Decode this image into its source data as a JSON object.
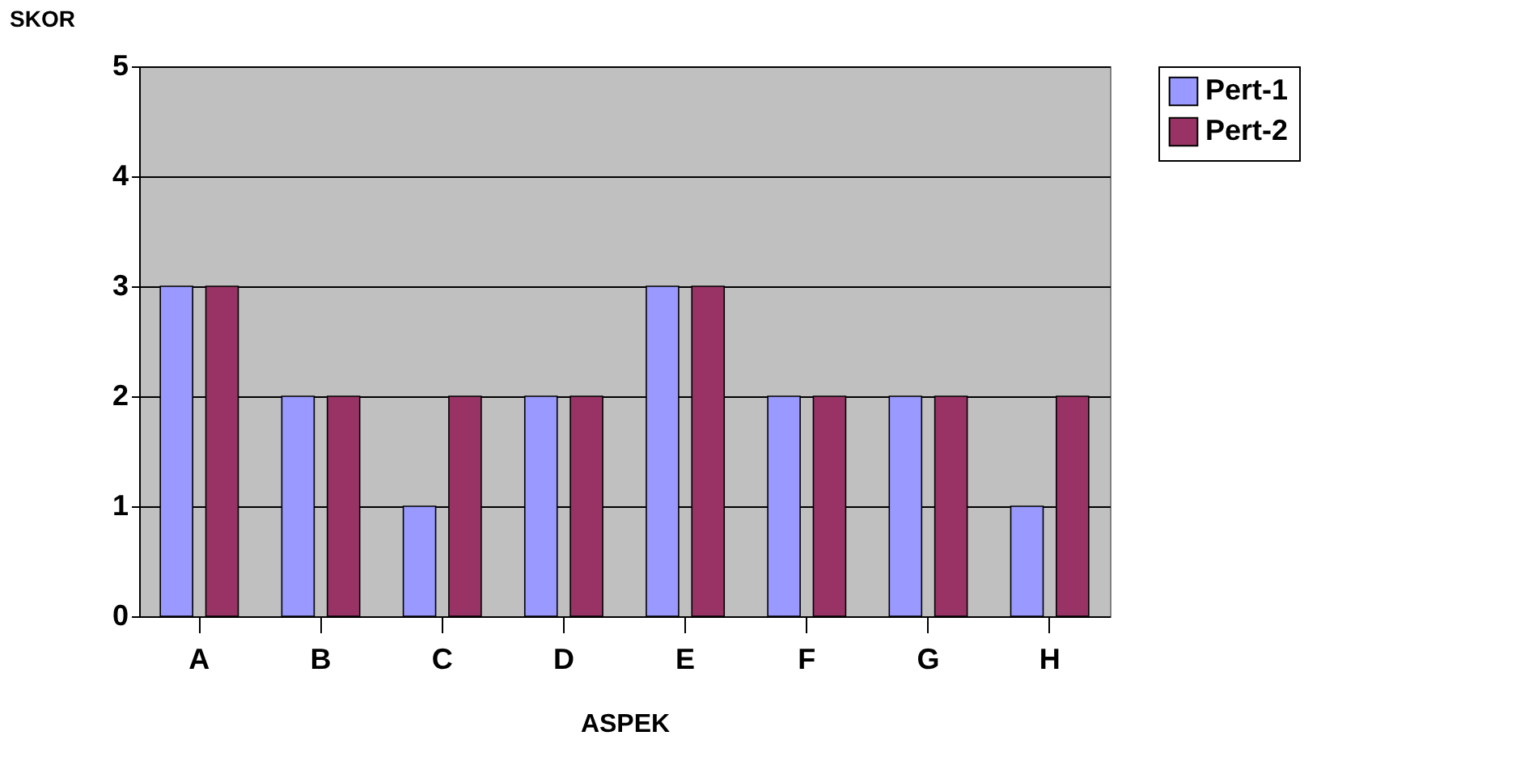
{
  "chart_data": {
    "type": "bar",
    "xlabel": "ASPEK",
    "ylabel": "SKOR",
    "categories": [
      "A",
      "B",
      "C",
      "D",
      "E",
      "F",
      "G",
      "H"
    ],
    "series": [
      {
        "name": "Pert-1",
        "color": "#9999ff",
        "values": [
          3,
          2,
          1,
          2,
          3,
          2,
          2,
          1
        ]
      },
      {
        "name": "Pert-2",
        "color": "#993366",
        "values": [
          3,
          2,
          2,
          2,
          3,
          2,
          2,
          2
        ]
      }
    ],
    "ylim": [
      0,
      5
    ],
    "yticks": [
      0,
      1,
      2,
      3,
      4,
      5
    ],
    "grid": "y",
    "legend": "right"
  }
}
